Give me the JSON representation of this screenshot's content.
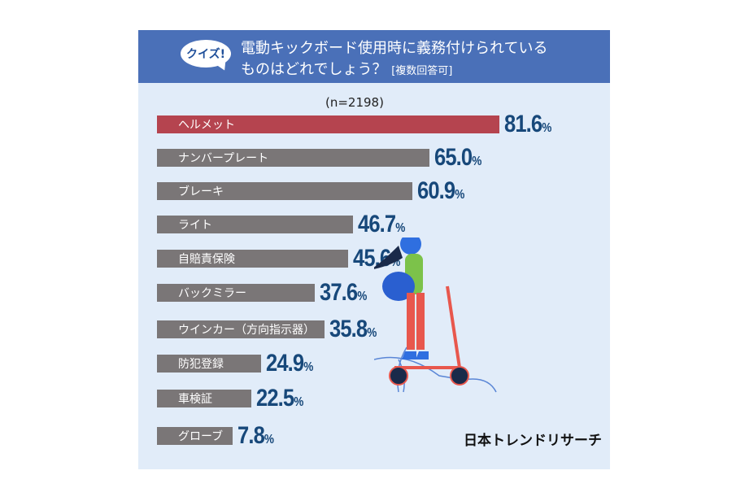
{
  "header": {
    "badge": "クイズ!",
    "title_line1": "電動キックボード使用時に義務付けられている",
    "title_line2": "ものはどれでしょう？",
    "title_note": "[複数回答可]"
  },
  "chart_data": {
    "type": "bar",
    "orientation": "horizontal",
    "sample_size": "(n=2198)",
    "categories": [
      "ヘルメット",
      "ナンバープレート",
      "ブレーキ",
      "ライト",
      "自賠責保険",
      "バックミラー",
      "ウインカー（方向指示器）",
      "防犯登録",
      "車検証",
      "グローブ"
    ],
    "values": [
      81.6,
      65.0,
      60.9,
      46.7,
      45.6,
      37.6,
      35.8,
      24.9,
      22.5,
      7.8
    ],
    "value_labels": [
      "81.6",
      "65.0",
      "60.9",
      "46.7",
      "45.6",
      "37.6",
      "35.8",
      "24.9",
      "22.5",
      "7.8"
    ],
    "unit": "%",
    "colors": {
      "highlight": "#b5444f",
      "default": "#7a7677",
      "value_text": "#17487a"
    }
  },
  "footer": {
    "logo": "日本トレンドリサーチ"
  }
}
